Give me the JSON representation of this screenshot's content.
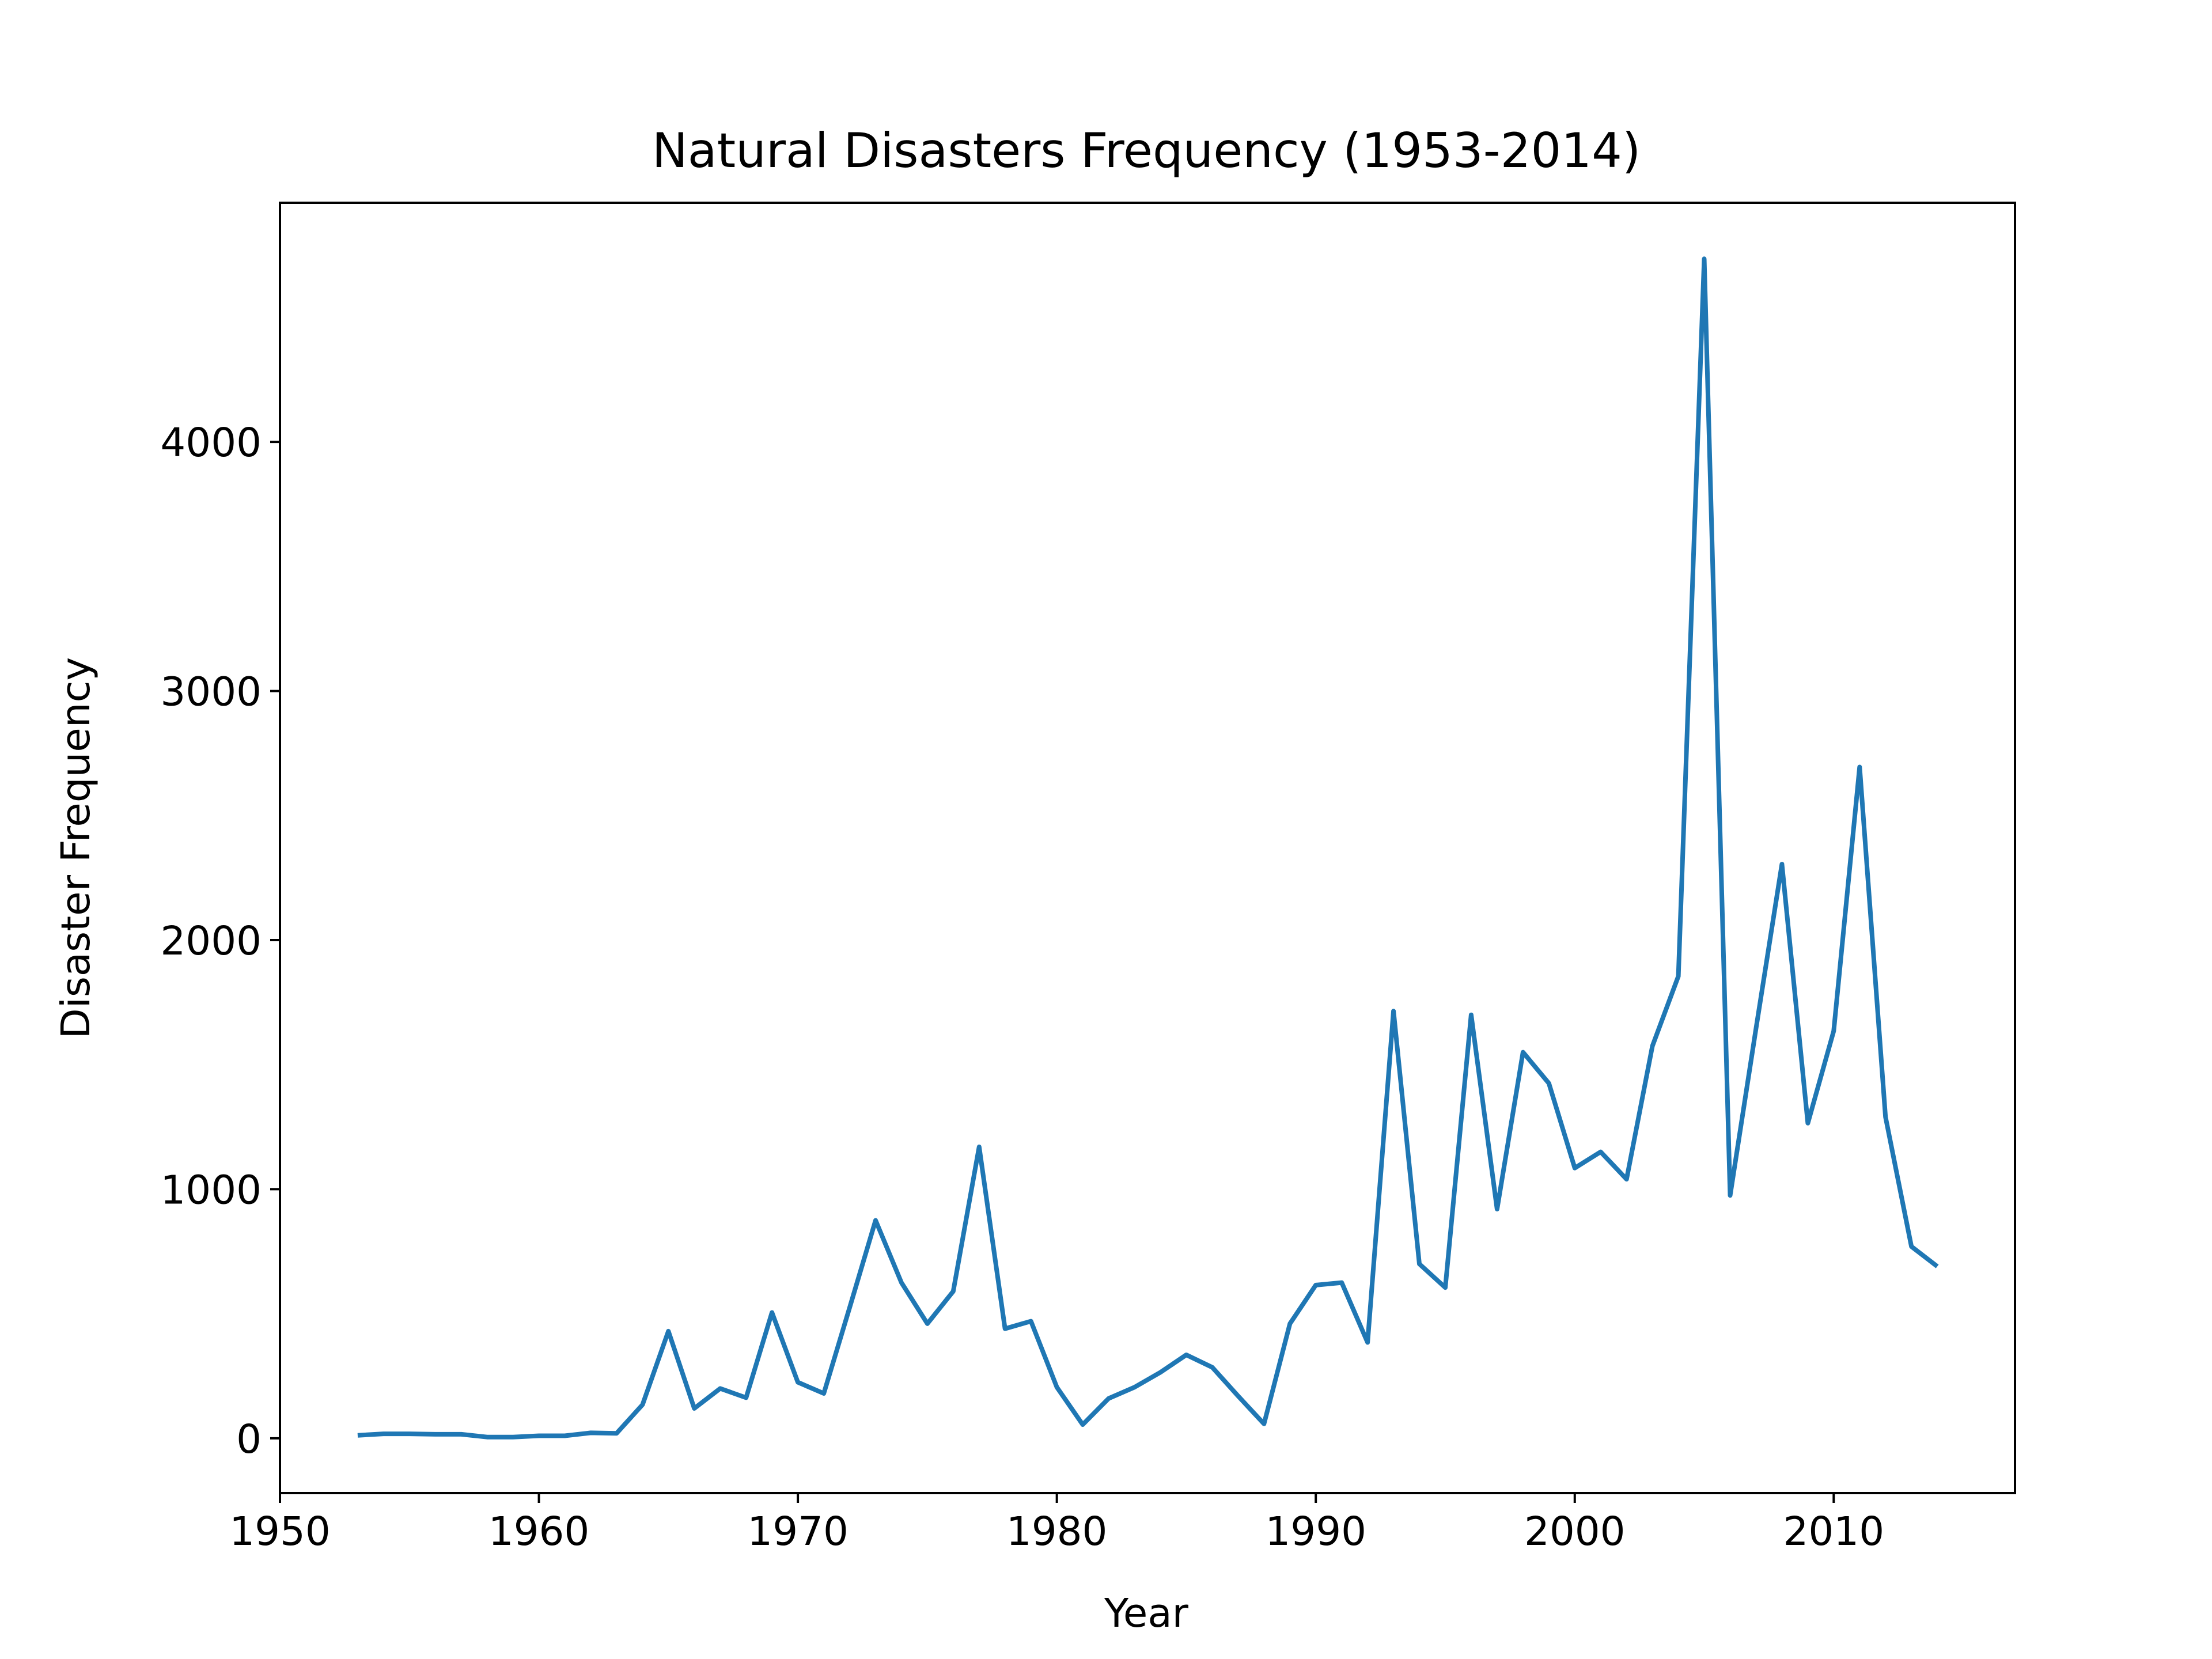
{
  "chart_data": {
    "type": "line",
    "title": "Natural Disasters Frequency (1953-2014)",
    "xlabel": "Year",
    "ylabel": "Disaster Frequency",
    "xlim": [
      1950,
      2017
    ],
    "ylim": [
      -220,
      4960
    ],
    "xticks": [
      1950,
      1960,
      1970,
      1980,
      1990,
      2000,
      2010
    ],
    "yticks": [
      0,
      1000,
      2000,
      3000,
      4000
    ],
    "grid": false,
    "line_color": "#1f77b4",
    "series": [
      {
        "x": [
          1953,
          1954,
          1955,
          1956,
          1957,
          1958,
          1959,
          1960,
          1961,
          1962,
          1963,
          1964,
          1965,
          1966,
          1967,
          1968,
          1969,
          1970,
          1971,
          1972,
          1973,
          1974,
          1975,
          1976,
          1977,
          1978,
          1979,
          1980,
          1981,
          1982,
          1983,
          1984,
          1985,
          1986,
          1987,
          1988,
          1989,
          1990,
          1991,
          1992,
          1993,
          1994,
          1995,
          1996,
          1997,
          1998,
          1999,
          2000,
          2001,
          2002,
          2003,
          2004,
          2005,
          2006,
          2007,
          2008,
          2009,
          2010,
          2011,
          2012,
          2013,
          2014
        ],
        "values": [
          12,
          18,
          18,
          16,
          16,
          5,
          5,
          10,
          10,
          22,
          20,
          135,
          430,
          120,
          200,
          163,
          505,
          225,
          180,
          525,
          875,
          625,
          460,
          590,
          1170,
          440,
          470,
          205,
          55,
          160,
          205,
          265,
          335,
          285,
          170,
          58,
          460,
          615,
          625,
          385,
          1715,
          700,
          605,
          1700,
          920,
          1550,
          1425,
          1085,
          1150,
          1040,
          1575,
          1855,
          4735,
          975,
          1645,
          2305,
          1265,
          1635,
          2695,
          1290,
          770,
          690
        ]
      }
    ]
  }
}
